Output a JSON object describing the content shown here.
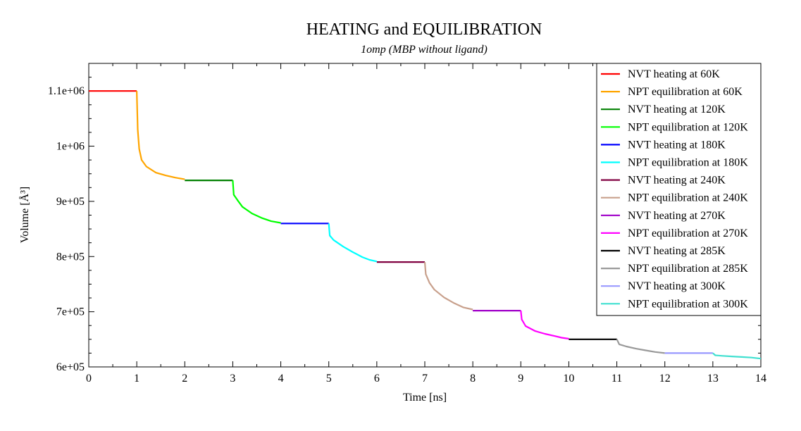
{
  "chart_data": {
    "type": "line",
    "title": "HEATING and EQUILIBRATION",
    "subtitle": "1omp (MBP without ligand)",
    "xlabel": "Time [ns]",
    "ylabel": "Volume [Å³]",
    "xlim": [
      0,
      14
    ],
    "ylim": [
      600000,
      1150000
    ],
    "x_ticks": [
      0,
      1,
      2,
      3,
      4,
      5,
      6,
      7,
      8,
      9,
      10,
      11,
      12,
      13,
      14
    ],
    "x_tick_labels": [
      "0",
      "1",
      "2",
      "3",
      "4",
      "5",
      "6",
      "7",
      "8",
      "9",
      "10",
      "11",
      "12",
      "13",
      "14"
    ],
    "y_ticks": [
      600000,
      700000,
      800000,
      900000,
      1000000,
      1100000
    ],
    "y_tick_labels": [
      "6e+05",
      "7e+05",
      "8e+05",
      "9e+05",
      "1e+06",
      "1.1e+06"
    ],
    "grid": false,
    "legend_position": "top-right",
    "series": [
      {
        "name": "NVT heating at 60K",
        "color": "#ff0000",
        "x": [
          0,
          1
        ],
        "y": [
          1100000,
          1100000
        ]
      },
      {
        "name": "NPT equilibration at 60K",
        "color": "#ffa500",
        "x": [
          1,
          1.02,
          1.05,
          1.1,
          1.2,
          1.4,
          1.6,
          1.8,
          2
        ],
        "y": [
          1100000,
          1030000,
          995000,
          975000,
          963000,
          952000,
          947000,
          943000,
          940000
        ]
      },
      {
        "name": "NVT heating at 120K",
        "color": "#008000",
        "x": [
          2,
          3
        ],
        "y": [
          938000,
          938000
        ]
      },
      {
        "name": "NPT equilibration at 120K",
        "color": "#00ff00",
        "x": [
          3,
          3.02,
          3.1,
          3.2,
          3.4,
          3.6,
          3.8,
          4
        ],
        "y": [
          938000,
          912000,
          902000,
          890000,
          878000,
          870000,
          864000,
          861000
        ]
      },
      {
        "name": "NVT heating at 180K",
        "color": "#0000ff",
        "x": [
          4,
          5
        ],
        "y": [
          860000,
          860000
        ]
      },
      {
        "name": "NPT equilibration at 180K",
        "color": "#00ffff",
        "x": [
          5,
          5.02,
          5.1,
          5.3,
          5.5,
          5.7,
          5.85,
          6
        ],
        "y": [
          860000,
          838000,
          830000,
          818000,
          808000,
          799000,
          794000,
          791000
        ]
      },
      {
        "name": "NVT heating at 240K",
        "color": "#800040",
        "x": [
          6,
          7
        ],
        "y": [
          790000,
          790000
        ]
      },
      {
        "name": "NPT equilibration at 240K",
        "color": "#c8a08c",
        "x": [
          7,
          7.02,
          7.1,
          7.2,
          7.4,
          7.6,
          7.8,
          8
        ],
        "y": [
          790000,
          768000,
          752000,
          740000,
          726000,
          716000,
          708000,
          704000
        ]
      },
      {
        "name": "NVT heating at 270K",
        "color": "#a000c8",
        "x": [
          8,
          9
        ],
        "y": [
          702000,
          702000
        ]
      },
      {
        "name": "NPT equilibration at 270K",
        "color": "#ff00ff",
        "x": [
          9,
          9.02,
          9.1,
          9.3,
          9.5,
          9.7,
          9.85,
          10
        ],
        "y": [
          702000,
          686000,
          674000,
          665000,
          660000,
          656000,
          653000,
          651000
        ]
      },
      {
        "name": "NVT heating at 285K",
        "color": "#000000",
        "x": [
          10,
          11
        ],
        "y": [
          650000,
          650000
        ]
      },
      {
        "name": "NPT equilibration at 285K",
        "color": "#999999",
        "x": [
          11,
          11.05,
          11.2,
          11.4,
          11.6,
          11.8,
          12
        ],
        "y": [
          650000,
          641000,
          637000,
          633000,
          630000,
          627000,
          625000
        ]
      },
      {
        "name": "NVT heating at 300K",
        "color": "#9999ff",
        "x": [
          12,
          13
        ],
        "y": [
          625000,
          625000
        ]
      },
      {
        "name": "NPT equilibration at 300K",
        "color": "#40e0d0",
        "x": [
          13,
          13.05,
          13.2,
          13.4,
          13.6,
          13.8,
          14
        ],
        "y": [
          625000,
          621000,
          620000,
          619000,
          618000,
          617000,
          615000
        ]
      }
    ]
  }
}
